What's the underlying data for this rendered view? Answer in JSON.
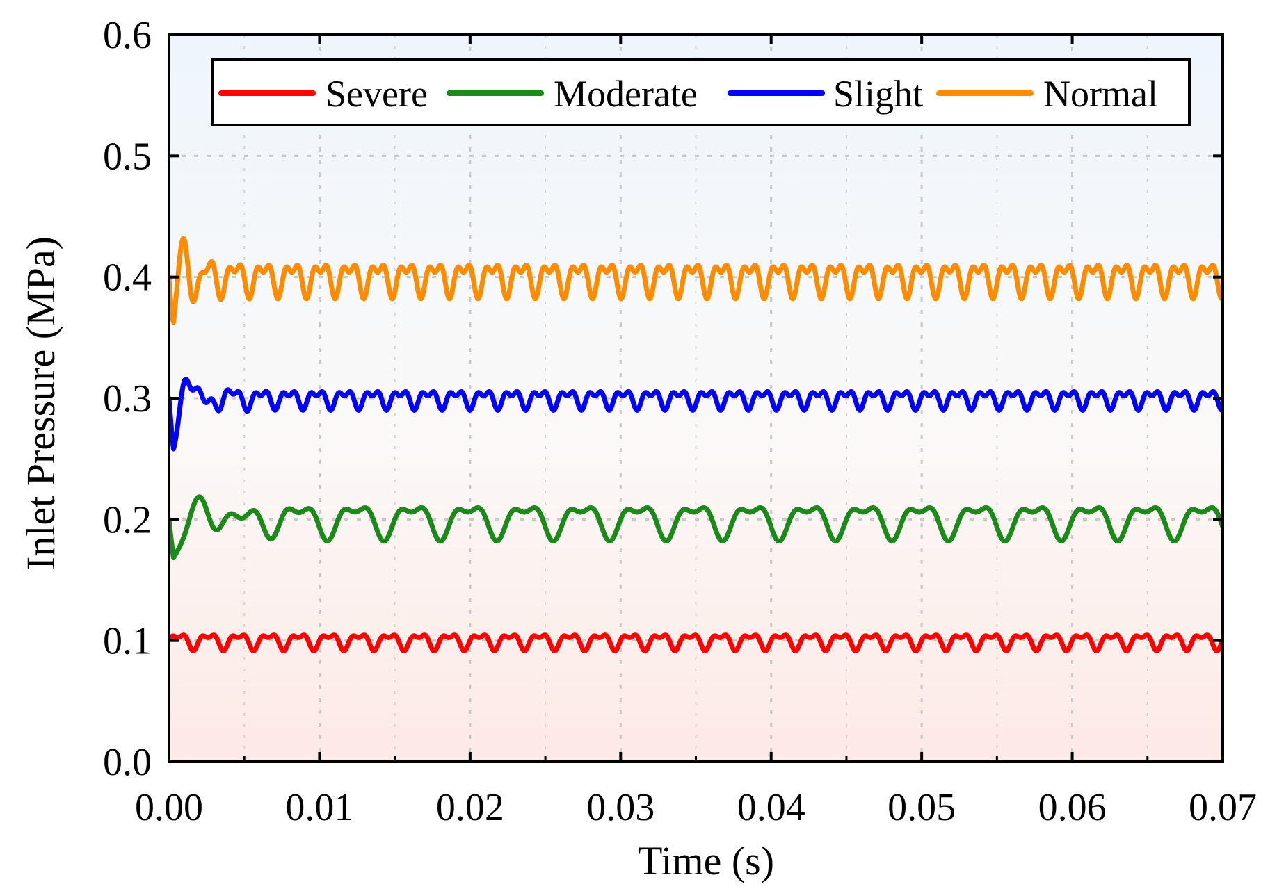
{
  "chart_data": {
    "type": "line",
    "title": "",
    "xlabel": "Time (s)",
    "ylabel": "Inlet Pressure (MPa)",
    "xlim": [
      0.0,
      0.07
    ],
    "ylim": [
      0.0,
      0.6
    ],
    "xticks": [
      "0.00",
      "0.01",
      "0.02",
      "0.03",
      "0.04",
      "0.05",
      "0.06",
      "0.07"
    ],
    "yticks": [
      "0.0",
      "0.1",
      "0.2",
      "0.3",
      "0.4",
      "0.5",
      "0.6"
    ],
    "grid": true,
    "legend_position": "top",
    "series": [
      {
        "name": "Severe",
        "color": "#ff0000",
        "mean": 0.1,
        "start": 0.103,
        "period": 0.002,
        "amp1": 0.0055,
        "amp2": 0.003,
        "transient_amp": 0,
        "transient_decay": 0.002,
        "transient_period": 0.003
      },
      {
        "name": "Moderate",
        "color": "#1b8a1b",
        "mean": 0.2,
        "start": 0.2,
        "period": 0.00375,
        "amp1": 0.012,
        "amp2": 0.006,
        "transient_amp": -0.045,
        "transient_decay": 0.0022,
        "transient_period": 0.0045
      },
      {
        "name": "Slight",
        "color": "#0000ff",
        "mean": 0.3,
        "start": 0.3,
        "period": 0.00185,
        "amp1": 0.006,
        "amp2": 0.004,
        "transient_amp": -0.06,
        "transient_decay": 0.0012,
        "transient_period": 0.0025
      },
      {
        "name": "Normal",
        "color": "#ff8c00",
        "mean": 0.4,
        "start": 0.4,
        "period": 0.0019,
        "amp1": 0.011,
        "amp2": 0.007,
        "transient_amp": -0.07,
        "transient_decay": 0.0009,
        "transient_period": 0.0018
      }
    ]
  }
}
